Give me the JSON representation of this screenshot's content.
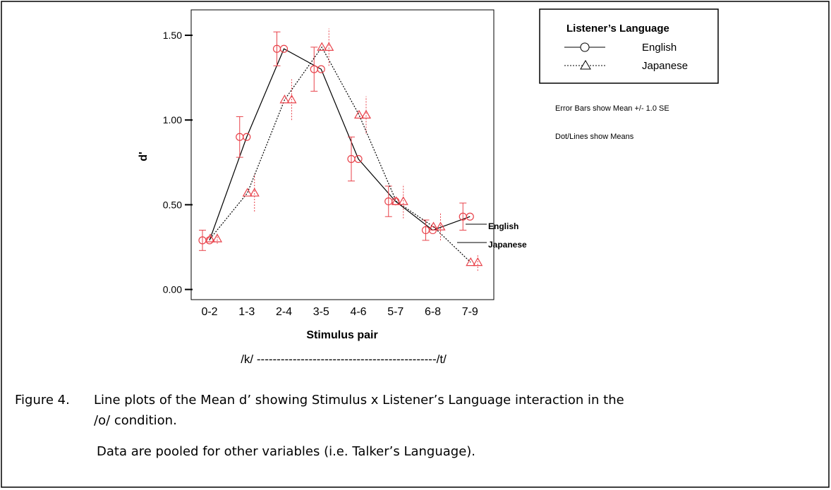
{
  "chart_data": {
    "type": "line",
    "y_label": "d'",
    "x_label": "Stimulus pair",
    "x_range_label": "/k/ ---------------------------------------------/t/",
    "categories": [
      "0-2",
      "1-3",
      "2-4",
      "3-5",
      "4-6",
      "5-7",
      "6-8",
      "7-9"
    ],
    "ylim": [
      -0.06,
      1.65
    ],
    "yticks": [
      {
        "value": 0,
        "label": "0.00"
      },
      {
        "value": 0.5,
        "label": "0.50"
      },
      {
        "value": 1,
        "label": "1.00"
      },
      {
        "value": 1.5,
        "label": "1.50"
      }
    ],
    "legend_title": "Listener’s Language",
    "legend": "top-right",
    "series": [
      {
        "name": "English",
        "marker": "circle",
        "dash": false,
        "color": "#e8424a",
        "line_color": "#000000",
        "values": [
          0.29,
          0.9,
          1.42,
          1.3,
          0.77,
          0.52,
          0.35,
          0.43
        ],
        "errors": [
          0.06,
          0.12,
          0.1,
          0.13,
          0.13,
          0.09,
          0.06,
          0.08
        ]
      },
      {
        "name": "Japanese",
        "marker": "triangle",
        "dash": true,
        "color": "#e8424a",
        "line_color": "#000000",
        "values": [
          0.3,
          0.57,
          1.12,
          1.43,
          1.03,
          0.52,
          0.37,
          0.16
        ],
        "errors": [
          0.03,
          0.11,
          0.12,
          0.11,
          0.11,
          0.1,
          0.08,
          0.05
        ]
      }
    ],
    "notes": [
      "Error Bars show Mean +/- 1.0 SE",
      "Dot/Lines show Means"
    ]
  },
  "caption": {
    "label": "Figure 4.",
    "lines": [
      "Line plots of the Mean d’ showing Stimulus x Listener’s Language interaction in the",
      "/o/ condition.",
      "Data are pooled for other variables (i.e. Talker’s Language)."
    ]
  }
}
